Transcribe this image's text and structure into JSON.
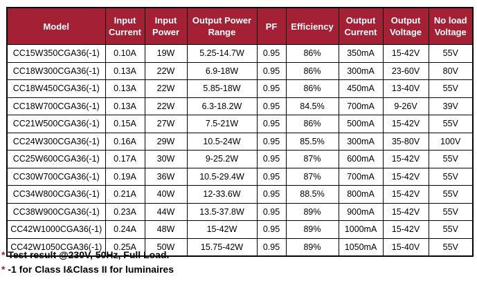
{
  "colors": {
    "header_bg": "#A32035",
    "header_text": "#FFFFFF",
    "body_text": "#000000",
    "border": "#000000",
    "footnote_marker": "#A32035"
  },
  "table": {
    "columns": [
      "Model",
      "Input\nCurrent",
      "Input\nPower",
      "Output Power\nRange",
      "PF",
      "Efficiency",
      "Output\nCurrent",
      "Output\nVoltage",
      "No load\nVoltage"
    ],
    "rows": [
      [
        "CC15W350CGA36(-1)",
        "0.10A",
        "19W",
        "5.25-14.7W",
        "0.95",
        "86%",
        "350mA",
        "15-42V",
        "55V"
      ],
      [
        "CC18W300CGA36(-1)",
        "0.13A",
        "22W",
        "6.9-18W",
        "0.95",
        "86%",
        "300mA",
        "23-60V",
        "80V"
      ],
      [
        "CC18W450CGA36(-1)",
        "0.13A",
        "22W",
        "5.85-18W",
        "0.95",
        "86%",
        "450mA",
        "13-40V",
        "55V"
      ],
      [
        "CC18W700CGA36(-1)",
        "0.13A",
        "22W",
        "6.3-18.2W",
        "0.95",
        "84.5%",
        "700mA",
        "9-26V",
        "39V"
      ],
      [
        "CC21W500CGA36(-1)",
        "0.15A",
        "27W",
        "7.5-21W",
        "0.95",
        "86%",
        "500mA",
        "15-42V",
        "55V"
      ],
      [
        "CC24W300CGA36(-1)",
        "0.16A",
        "29W",
        "10.5-24W",
        "0.95",
        "85.5%",
        "300mA",
        "35-80V",
        "100V"
      ],
      [
        "CC25W600CGA36(-1)",
        "0.17A",
        "30W",
        "9-25.2W",
        "0.95",
        "87%",
        "600mA",
        "15-42V",
        "55V"
      ],
      [
        "CC30W700CGA36(-1)",
        "0.19A",
        "36W",
        "10.5-29.4W",
        "0.95",
        "87%",
        "700mA",
        "15-42V",
        "55V"
      ],
      [
        "CC34W800CGA36(-1)",
        "0.21A",
        "40W",
        "12-33.6W",
        "0.95",
        "88.5%",
        "800mA",
        "15-42V",
        "55V"
      ],
      [
        "CC38W900CGA36(-1)",
        "0.23A",
        "44W",
        "13.5-37.8W",
        "0.95",
        "89%",
        "900mA",
        "15-42V",
        "55V"
      ],
      [
        "CC42W1000CGA36(-1)",
        "0.24A",
        "48W",
        "15-42W",
        "0.95",
        "89%",
        "1000mA",
        "15-42V",
        "55V"
      ],
      [
        "CC42W1050CGA36(-1)",
        "0.25A",
        "50W",
        "15.75-42W",
        "0.95",
        "89%",
        "1050mA",
        "15-40V",
        "55V"
      ]
    ]
  },
  "footnotes": [
    {
      "marker": "*",
      "text": "Test result @230V, 50Hz, Full Load."
    },
    {
      "marker": "*",
      "text": "-1 for Class I&Class II for luminaires"
    }
  ]
}
